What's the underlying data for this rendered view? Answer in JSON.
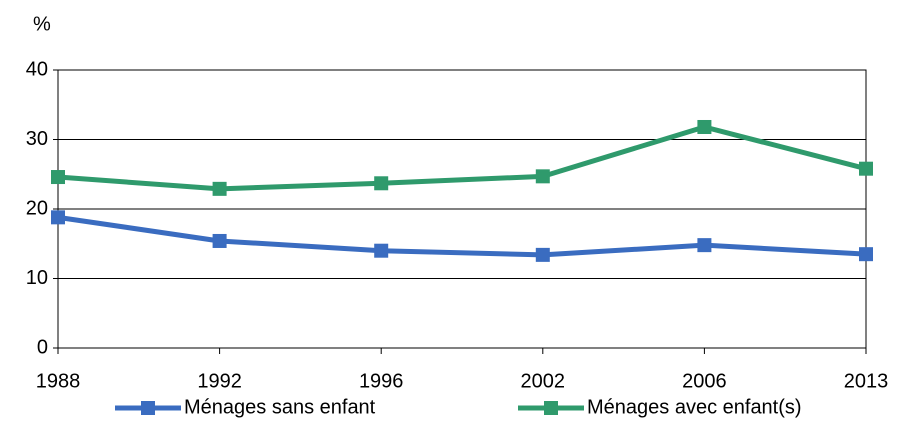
{
  "chart_data": {
    "type": "line",
    "ylabel": "%",
    "categories": [
      "1988",
      "1992",
      "1996",
      "2002",
      "2006",
      "2013"
    ],
    "series": [
      {
        "name": "Ménages sans enfant",
        "color": "#3a6cc0",
        "values": [
          18.8,
          15.4,
          14.0,
          13.4,
          14.8,
          13.5
        ]
      },
      {
        "name": "Ménages avec enfant(s)",
        "color": "#2f9a6c",
        "values": [
          24.6,
          22.9,
          23.7,
          24.7,
          31.8,
          25.8
        ]
      }
    ],
    "ylim": [
      0,
      40
    ],
    "yticks": [
      0,
      10,
      20,
      30,
      40
    ],
    "grid": true,
    "legend": "bottom"
  }
}
